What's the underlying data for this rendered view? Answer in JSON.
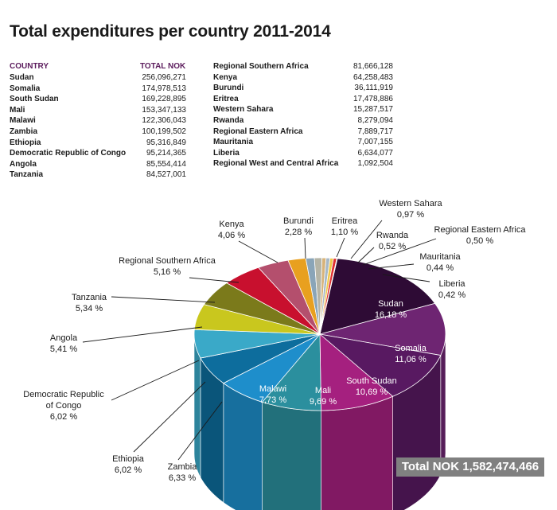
{
  "title": "Total expenditures per country 2011-2014",
  "table": {
    "header_country": "COUNTRY",
    "header_total": "TOTAL NOK",
    "left_rows": [
      {
        "name": "Sudan",
        "value": "256,096,271"
      },
      {
        "name": "Somalia",
        "value": "174,978,513"
      },
      {
        "name": "South Sudan",
        "value": "169,228,895"
      },
      {
        "name": "Mali",
        "value": "153,347,133"
      },
      {
        "name": "Malawi",
        "value": "122,306,043"
      },
      {
        "name": "Zambia",
        "value": "100,199,502"
      },
      {
        "name": "Ethiopia",
        "value": "95,316,849"
      },
      {
        "name": "Democratic Republic of Congo",
        "value": "95,214,365"
      },
      {
        "name": "Angola",
        "value": "85,554,414"
      },
      {
        "name": "Tanzania",
        "value": "84,527,001"
      }
    ],
    "right_rows": [
      {
        "name": "Regional Southern Africa",
        "value": "81,666,128"
      },
      {
        "name": "Kenya",
        "value": "64,258,483"
      },
      {
        "name": "Burundi",
        "value": "36,111,919"
      },
      {
        "name": "Eritrea",
        "value": "17,478,886"
      },
      {
        "name": "Western Sahara",
        "value": "15,287,517"
      },
      {
        "name": "Rwanda",
        "value": "8,279,094"
      },
      {
        "name": "Regional Eastern Africa",
        "value": "7,889,717"
      },
      {
        "name": "Mauritania",
        "value": "7,007,155"
      },
      {
        "name": "Liberia",
        "value": "6,634,077"
      },
      {
        "name": "Regional West and Central Africa",
        "value": "1,092,504"
      }
    ]
  },
  "total_label": "Total NOK 1,582,474,466",
  "chart_data": {
    "type": "pie",
    "title": "Total expenditures per country 2011-2014",
    "slices": [
      {
        "name": "Sudan",
        "percent": 16.18,
        "percent_label": "16,18 %",
        "color": "#2e0b35",
        "text_color": "#ffffff"
      },
      {
        "name": "Somalia",
        "percent": 11.06,
        "percent_label": "11,06 %",
        "color": "#6e2572",
        "text_color": "#ffffff"
      },
      {
        "name": "South Sudan",
        "percent": 10.69,
        "percent_label": "10,69 %",
        "color": "#581961",
        "text_color": "#ffffff"
      },
      {
        "name": "Mali",
        "percent": 9.69,
        "percent_label": "9,69 %",
        "color": "#a5207f",
        "text_color": "#ffffff"
      },
      {
        "name": "Malawi",
        "percent": 7.73,
        "percent_label": "7,73 %",
        "color": "#2b8f9e",
        "text_color": "#ffffff"
      },
      {
        "name": "Zambia",
        "percent": 6.33,
        "percent_label": "6,33 %",
        "color": "#1e8ecb",
        "text_color": "#1a1a1a"
      },
      {
        "name": "Ethiopia",
        "percent": 6.02,
        "percent_label": "6,02 %",
        "color": "#0d6d9d",
        "text_color": "#1a1a1a"
      },
      {
        "name": "Democratic Republic of Congo",
        "percent": 6.02,
        "percent_label": "6,02 %",
        "color": "#3aa9c8",
        "text_color": "#1a1a1a"
      },
      {
        "name": "Angola",
        "percent": 5.41,
        "percent_label": "5,41 %",
        "color": "#c9c71e",
        "text_color": "#1a1a1a"
      },
      {
        "name": "Tanzania",
        "percent": 5.34,
        "percent_label": "5,34 %",
        "color": "#7b7a1b",
        "text_color": "#1a1a1a"
      },
      {
        "name": "Regional Southern Africa",
        "percent": 5.16,
        "percent_label": "5,16 %",
        "color": "#c8102e",
        "text_color": "#1a1a1a"
      },
      {
        "name": "Kenya",
        "percent": 4.06,
        "percent_label": "4,06 %",
        "color": "#b44f6d",
        "text_color": "#1a1a1a"
      },
      {
        "name": "Burundi",
        "percent": 2.28,
        "percent_label": "2,28 %",
        "color": "#e8a01f",
        "text_color": "#1a1a1a"
      },
      {
        "name": "Eritrea",
        "percent": 1.1,
        "percent_label": "1,10 %",
        "color": "#8aa5b8",
        "text_color": "#1a1a1a"
      },
      {
        "name": "Western Sahara",
        "percent": 0.97,
        "percent_label": "0,97 %",
        "color": "#b4b4a6",
        "text_color": "#1a1a1a"
      },
      {
        "name": "Rwanda",
        "percent": 0.52,
        "percent_label": "0,52 %",
        "color": "#d7b37a",
        "text_color": "#1a1a1a"
      },
      {
        "name": "Regional Eastern Africa",
        "percent": 0.5,
        "percent_label": "0,50 %",
        "color": "#a7b8c6",
        "text_color": "#1a1a1a"
      },
      {
        "name": "Mauritania",
        "percent": 0.44,
        "percent_label": "0,44 %",
        "color": "#f0c84a",
        "text_color": "#1a1a1a"
      },
      {
        "name": "Liberia",
        "percent": 0.42,
        "percent_label": "0,42 %",
        "color": "#e03030",
        "text_color": "#1a1a1a"
      },
      {
        "name": "Regional West and Central Africa",
        "percent": 0.07,
        "percent_label": "",
        "color": "#e05050",
        "text_color": "#1a1a1a"
      }
    ]
  }
}
